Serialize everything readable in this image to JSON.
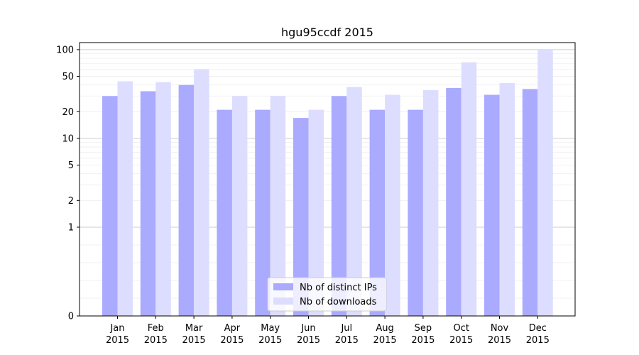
{
  "chart_data": {
    "type": "bar",
    "title": "hgu95ccdf 2015",
    "xlabel": "",
    "ylabel": "",
    "yscale": "symlog",
    "ylim": [
      0,
      120
    ],
    "yticks": [
      {
        "value": 0,
        "label": "0"
      },
      {
        "value": 1,
        "label": "1"
      },
      {
        "value": 2,
        "label": "2"
      },
      {
        "value": 5,
        "label": "5"
      },
      {
        "value": 10,
        "label": "10"
      },
      {
        "value": 20,
        "label": "20"
      },
      {
        "value": 50,
        "label": "50"
      },
      {
        "value": 100,
        "label": "100"
      }
    ],
    "categories": [
      {
        "month": "Jan",
        "year": "2015"
      },
      {
        "month": "Feb",
        "year": "2015"
      },
      {
        "month": "Mar",
        "year": "2015"
      },
      {
        "month": "Apr",
        "year": "2015"
      },
      {
        "month": "May",
        "year": "2015"
      },
      {
        "month": "Jun",
        "year": "2015"
      },
      {
        "month": "Jul",
        "year": "2015"
      },
      {
        "month": "Aug",
        "year": "2015"
      },
      {
        "month": "Sep",
        "year": "2015"
      },
      {
        "month": "Oct",
        "year": "2015"
      },
      {
        "month": "Nov",
        "year": "2015"
      },
      {
        "month": "Dec",
        "year": "2015"
      }
    ],
    "series": [
      {
        "name": "Nb of distinct IPs",
        "color": "#aaaaff",
        "values": [
          30,
          34,
          40,
          21,
          21,
          17,
          30,
          21,
          21,
          37,
          31,
          36
        ]
      },
      {
        "name": "Nb of downloads",
        "color": "#ddddff",
        "values": [
          44,
          43,
          60,
          30,
          30,
          21,
          38,
          31,
          35,
          72,
          42,
          100
        ]
      }
    ],
    "grid": true,
    "legend": "lower-center"
  }
}
